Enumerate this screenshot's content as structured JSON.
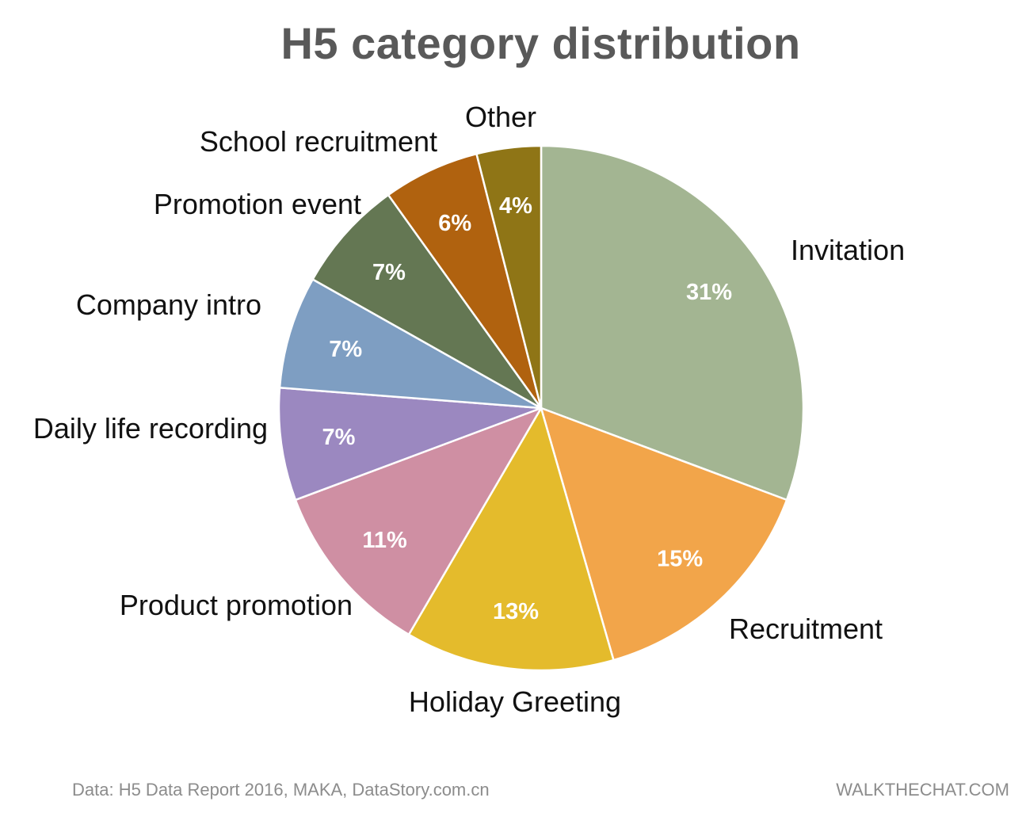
{
  "chart_data": {
    "type": "pie",
    "title": "H5 category distribution",
    "categories": [
      "Invitation",
      "Recruitment",
      "Holiday Greeting",
      "Product promotion",
      "Daily life recording",
      "Company intro",
      "Promotion event",
      "School recruitment",
      "Other"
    ],
    "values": [
      31,
      15,
      13,
      11,
      7,
      7,
      7,
      6,
      4
    ],
    "value_labels": [
      "31%",
      "15%",
      "13%",
      "11%",
      "7%",
      "7%",
      "7%",
      "6%",
      "4%"
    ],
    "colors": [
      "#a3b592",
      "#f2a54a",
      "#e4bb2c",
      "#cf8fa3",
      "#9b88c0",
      "#7e9ec2",
      "#647753",
      "#b0620f",
      "#8f7516"
    ],
    "start": "12 o'clock",
    "direction": "clockwise"
  },
  "footer": {
    "source": "Data: H5 Data Report 2016, MAKA, DataStory.com.cn",
    "brand": "WALKTHECHAT.COM"
  }
}
